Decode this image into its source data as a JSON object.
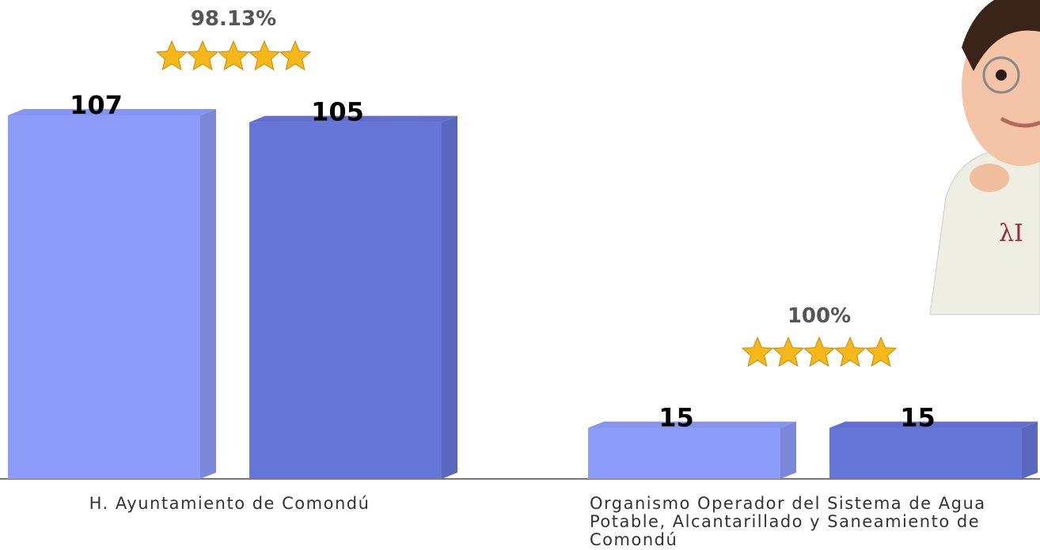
{
  "chart_data": {
    "type": "bar",
    "categories": [
      "H. Ayuntamiento de Comondú",
      "Organismo Operador del Sistema de Agua Potable, Alcantarillado y Saneamiento de Comondú"
    ],
    "series": [
      {
        "color": "#8c9cf8",
        "values": [
          107,
          15
        ]
      },
      {
        "color": "#6675d8",
        "values": [
          105,
          15
        ]
      }
    ],
    "annotations": [
      {
        "value": 98.13,
        "label": "98.13%"
      },
      {
        "value": 100,
        "label": "100%"
      }
    ]
  }
}
